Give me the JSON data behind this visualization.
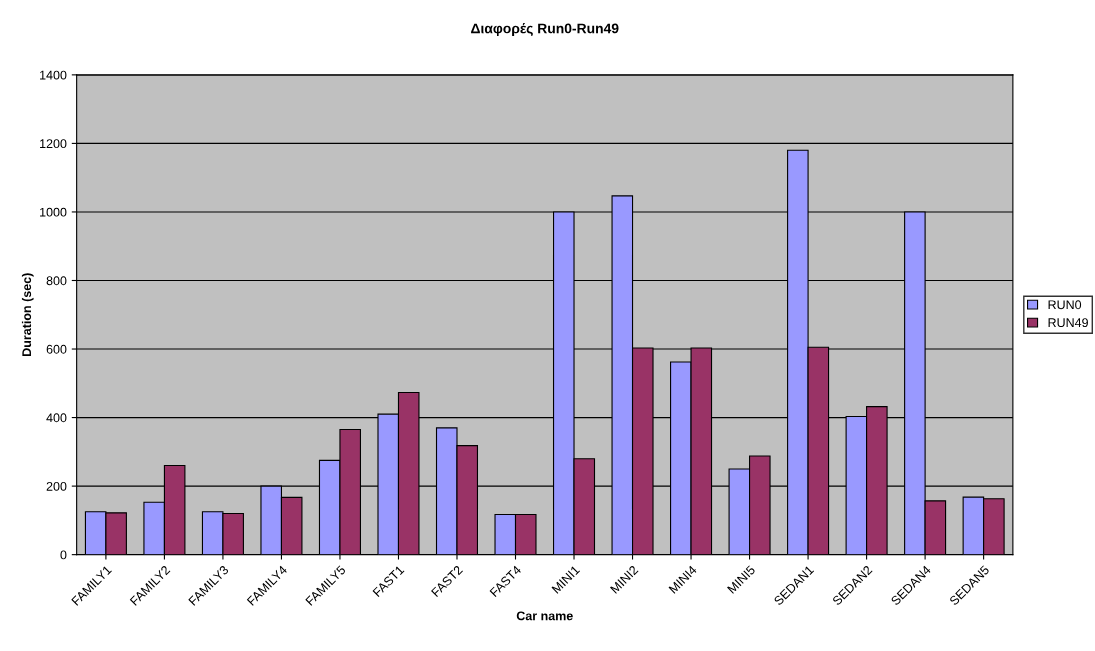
{
  "chart_data": {
    "type": "bar",
    "title": "Διαφορές Run0-Run49",
    "xlabel": "Car name",
    "ylabel": "Duration (sec)",
    "categories": [
      "FAMILY1",
      "FAMILY2",
      "FAMILY3",
      "FAMILY4",
      "FAMILY5",
      "FAST1",
      "FAST2",
      "FAST4",
      "MINI1",
      "MINI2",
      "MINI4",
      "MINI5",
      "SEDAN1",
      "SEDAN2",
      "SEDAN4",
      "SEDAN5"
    ],
    "series": [
      {
        "name": "RUN0",
        "color": "#9999ff",
        "values": [
          125,
          153,
          125,
          200,
          275,
          410,
          370,
          117,
          1000,
          1047,
          562,
          250,
          1180,
          403,
          1000,
          168
        ]
      },
      {
        "name": "RUN49",
        "color": "#993366",
        "values": [
          122,
          260,
          120,
          167,
          365,
          473,
          318,
          117,
          280,
          603,
          603,
          288,
          605,
          432,
          157,
          163
        ]
      }
    ],
    "ylim": [
      0,
      1400
    ],
    "yticks": [
      0,
      200,
      400,
      600,
      800,
      1000,
      1200,
      1400
    ],
    "grid": "y",
    "legend": "right"
  }
}
